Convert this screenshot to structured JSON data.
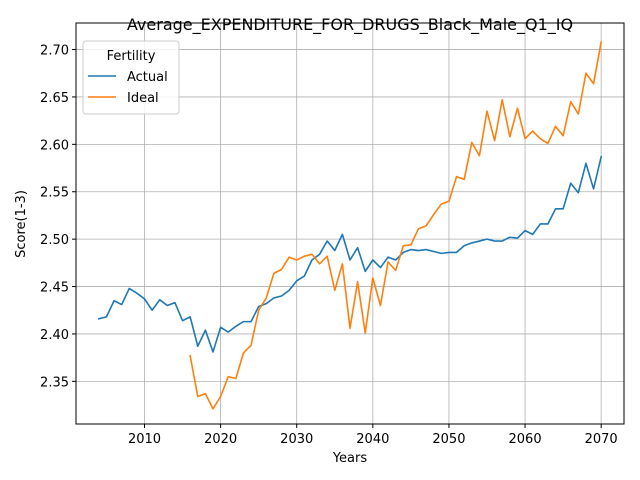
{
  "chart_data": {
    "type": "line",
    "title": "Average_EXPENDITURE_FOR_DRUGS_Black_Male_Q1_IQ",
    "xlabel": "Years",
    "ylabel": "Score(1-3)",
    "xlim": [
      2001,
      2073
    ],
    "ylim": [
      2.305,
      2.728
    ],
    "xticks": [
      2010,
      2020,
      2030,
      2040,
      2050,
      2060,
      2070
    ],
    "yticks": [
      2.35,
      2.4,
      2.45,
      2.5,
      2.55,
      2.6,
      2.65,
      2.7
    ],
    "ytick_labels": [
      "2.35",
      "2.40",
      "2.45",
      "2.50",
      "2.55",
      "2.60",
      "2.65",
      "2.70"
    ],
    "grid": true,
    "legend": {
      "title": "Fertility",
      "position": "top-left"
    },
    "series": [
      {
        "name": "Actual",
        "color": "#1f77b4",
        "x": [
          2004,
          2005,
          2006,
          2007,
          2008,
          2009,
          2010,
          2011,
          2012,
          2013,
          2014,
          2015,
          2016,
          2017,
          2018,
          2019,
          2020,
          2021,
          2022,
          2023,
          2024,
          2025,
          2026,
          2027,
          2028,
          2029,
          2030,
          2031,
          2032,
          2033,
          2034,
          2035,
          2036,
          2037,
          2038,
          2039,
          2040,
          2041,
          2042,
          2043,
          2044,
          2045,
          2046,
          2047,
          2048,
          2049,
          2050,
          2051,
          2052,
          2053,
          2054,
          2055,
          2056,
          2057,
          2058,
          2059,
          2060,
          2061,
          2062,
          2063,
          2064,
          2065,
          2066,
          2067,
          2068,
          2069,
          2070
        ],
        "values": [
          2.416,
          2.418,
          2.435,
          2.431,
          2.448,
          2.443,
          2.437,
          2.425,
          2.436,
          2.43,
          2.433,
          2.414,
          2.418,
          2.387,
          2.404,
          2.381,
          2.407,
          2.402,
          2.408,
          2.413,
          2.413,
          2.429,
          2.432,
          2.438,
          2.44,
          2.446,
          2.456,
          2.461,
          2.478,
          2.484,
          2.498,
          2.488,
          2.505,
          2.478,
          2.491,
          2.466,
          2.478,
          2.47,
          2.481,
          2.478,
          2.486,
          2.489,
          2.488,
          2.489,
          2.487,
          2.485,
          2.486,
          2.486,
          2.493,
          2.496,
          2.498,
          2.5,
          2.498,
          2.498,
          2.502,
          2.501,
          2.509,
          2.505,
          2.516,
          2.516,
          2.532,
          2.532,
          2.559,
          2.549,
          2.58,
          2.553,
          2.587
        ]
      },
      {
        "name": "Ideal",
        "color": "#ff7f0e",
        "x": [
          2016,
          2017,
          2018,
          2019,
          2020,
          2021,
          2022,
          2023,
          2024,
          2025,
          2026,
          2027,
          2028,
          2029,
          2030,
          2031,
          2032,
          2033,
          2034,
          2035,
          2036,
          2037,
          2038,
          2039,
          2040,
          2041,
          2042,
          2043,
          2044,
          2045,
          2046,
          2047,
          2048,
          2049,
          2050,
          2051,
          2052,
          2053,
          2054,
          2055,
          2056,
          2057,
          2058,
          2059,
          2060,
          2061,
          2062,
          2063,
          2064,
          2065,
          2066,
          2067,
          2068,
          2069,
          2070
        ],
        "values": [
          2.377,
          2.334,
          2.337,
          2.321,
          2.334,
          2.355,
          2.353,
          2.38,
          2.388,
          2.425,
          2.438,
          2.464,
          2.468,
          2.481,
          2.478,
          2.482,
          2.484,
          2.474,
          2.482,
          2.446,
          2.474,
          2.406,
          2.455,
          2.401,
          2.459,
          2.43,
          2.476,
          2.467,
          2.493,
          2.494,
          2.511,
          2.514,
          2.526,
          2.537,
          2.54,
          2.566,
          2.563,
          2.602,
          2.588,
          2.635,
          2.604,
          2.647,
          2.608,
          2.638,
          2.606,
          2.614,
          2.606,
          2.601,
          2.619,
          2.609,
          2.645,
          2.632,
          2.675,
          2.664,
          2.708
        ]
      }
    ]
  }
}
